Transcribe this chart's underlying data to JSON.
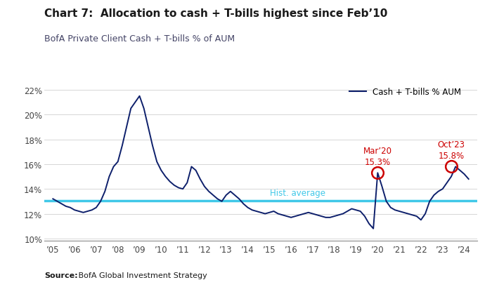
{
  "title": "Chart 7:  Allocation to cash + T-bills highest since Feb’10",
  "subtitle": "BofA Private Client Cash + T-bills % of AUM",
  "source_bold": "Source:",
  "source_rest": " BofA Global Investment Strategy",
  "legend_label": "Cash + T-bills % AUM",
  "hist_avg_label": "Hist. average",
  "hist_avg_value": 13.05,
  "line_color": "#0d1f6b",
  "hist_avg_color": "#40c8e8",
  "annotation1_color": "#cc0000",
  "annotation2_color": "#cc0000",
  "ylim": [
    9.8,
    22.8
  ],
  "yticks": [
    10,
    12,
    14,
    16,
    18,
    20,
    22
  ],
  "ytick_labels": [
    "10%",
    "12%",
    "14%",
    "16%",
    "18%",
    "20%",
    "22%"
  ],
  "years": [
    "05",
    "06",
    "07",
    "08",
    "09",
    "10",
    "11",
    "12",
    "13",
    "14",
    "15",
    "16",
    "17",
    "18",
    "19",
    "20",
    "21",
    "22",
    "23",
    "24"
  ],
  "background_color": "#ffffff",
  "data": {
    "x": [
      2005.0,
      2005.2,
      2005.4,
      2005.6,
      2005.8,
      2006.0,
      2006.2,
      2006.4,
      2006.6,
      2006.8,
      2007.0,
      2007.2,
      2007.4,
      2007.6,
      2007.8,
      2008.0,
      2008.2,
      2008.4,
      2008.6,
      2008.8,
      2009.0,
      2009.2,
      2009.4,
      2009.6,
      2009.8,
      2010.0,
      2010.2,
      2010.4,
      2010.6,
      2010.8,
      2011.0,
      2011.2,
      2011.4,
      2011.6,
      2011.8,
      2012.0,
      2012.2,
      2012.4,
      2012.6,
      2012.8,
      2013.0,
      2013.2,
      2013.4,
      2013.6,
      2013.8,
      2014.0,
      2014.2,
      2014.4,
      2014.6,
      2014.8,
      2015.0,
      2015.2,
      2015.4,
      2015.6,
      2015.8,
      2016.0,
      2016.2,
      2016.4,
      2016.6,
      2016.8,
      2017.0,
      2017.2,
      2017.4,
      2017.6,
      2017.8,
      2018.0,
      2018.2,
      2018.4,
      2018.6,
      2018.8,
      2019.0,
      2019.2,
      2019.4,
      2019.6,
      2019.8,
      2020.0,
      2020.2,
      2020.4,
      2020.6,
      2020.8,
      2021.0,
      2021.2,
      2021.4,
      2021.6,
      2021.8,
      2022.0,
      2022.2,
      2022.4,
      2022.6,
      2022.8,
      2023.0,
      2023.2,
      2023.4,
      2023.6,
      2023.8,
      2024.0,
      2024.2
    ],
    "y": [
      13.2,
      13.0,
      12.8,
      12.6,
      12.5,
      12.3,
      12.2,
      12.1,
      12.2,
      12.3,
      12.5,
      13.0,
      13.8,
      15.0,
      15.8,
      16.2,
      17.5,
      19.0,
      20.5,
      21.0,
      21.5,
      20.5,
      19.0,
      17.5,
      16.2,
      15.5,
      15.0,
      14.6,
      14.3,
      14.1,
      14.0,
      14.5,
      15.8,
      15.5,
      14.8,
      14.2,
      13.8,
      13.5,
      13.2,
      13.0,
      13.5,
      13.8,
      13.5,
      13.2,
      12.8,
      12.5,
      12.3,
      12.2,
      12.1,
      12.0,
      12.1,
      12.2,
      12.0,
      11.9,
      11.8,
      11.7,
      11.8,
      11.9,
      12.0,
      12.1,
      12.0,
      11.9,
      11.8,
      11.7,
      11.7,
      11.8,
      11.9,
      12.0,
      12.2,
      12.4,
      12.3,
      12.2,
      11.8,
      11.2,
      10.8,
      15.3,
      14.2,
      13.0,
      12.5,
      12.3,
      12.2,
      12.1,
      12.0,
      11.9,
      11.8,
      11.5,
      12.0,
      13.0,
      13.5,
      13.8,
      14.0,
      14.5,
      15.0,
      15.8,
      15.5,
      15.2,
      14.8
    ]
  }
}
